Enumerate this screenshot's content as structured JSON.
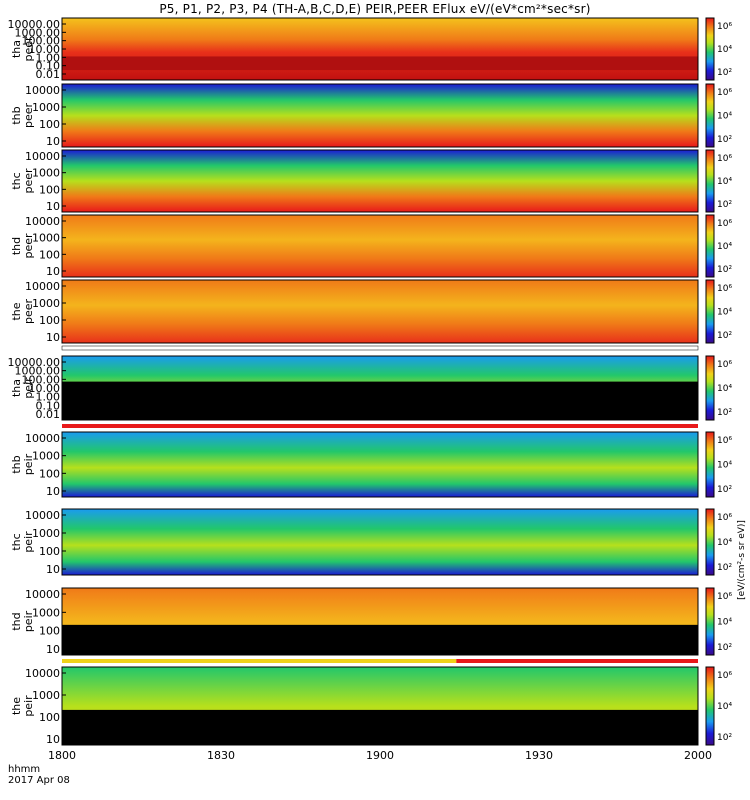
{
  "header": {
    "title": "P5, P1, P2, P3, P4 (TH-A,B,C,D,E) PEIR,PEER EFlux eV/(eV*cm²*sec*sr)"
  },
  "footer": {
    "time_format": "hhmm",
    "date": "2017 Apr 08"
  },
  "colorbar_label": "[eV/(cm²-s sr eV)]",
  "colors": {
    "low": "#1b1bd6",
    "mid": "#22c76b",
    "high": "#f0d21a",
    "peak": "#e8191a",
    "fill": "#000000",
    "frame": "#000000"
  },
  "chart_data": {
    "type": "heatmap",
    "x_ticks": [
      "1800",
      "1830",
      "1900",
      "1930",
      "2000"
    ],
    "xlim": [
      "18:00",
      "20:00"
    ],
    "colorbar_ticks": [
      "10²",
      "10⁴",
      "10⁶"
    ],
    "panels": [
      {
        "id": "tha-peer",
        "label_top": "tha",
        "label_bot": "peer",
        "y_ticks": [
          "10000.00",
          "1000.00",
          "100.00",
          "10.00",
          "1.00",
          "0.10",
          "0.01"
        ],
        "scale": "log"
      },
      {
        "id": "thb-peer",
        "label_top": "thb",
        "label_bot": "peer",
        "y_ticks": [
          "10000",
          "1000",
          "100",
          "10"
        ],
        "scale": "log"
      },
      {
        "id": "thc-peer",
        "label_top": "thc",
        "label_bot": "peer",
        "y_ticks": [
          "10000",
          "1000",
          "100",
          "10"
        ],
        "scale": "log"
      },
      {
        "id": "thd-peer",
        "label_top": "thd",
        "label_bot": "peer",
        "y_ticks": [
          "10000",
          "1000",
          "100",
          "10"
        ],
        "scale": "log"
      },
      {
        "id": "the-peer",
        "label_top": "the",
        "label_bot": "peer",
        "y_ticks": [
          "10000",
          "1000",
          "100",
          "10"
        ],
        "scale": "log"
      },
      {
        "id": "tha-peir",
        "label_top": "tha",
        "label_bot": "peir",
        "y_ticks": [
          "10000.00",
          "1000.00",
          "100.00",
          "10.00",
          "1.00",
          "0.10",
          "0.01"
        ],
        "scale": "log"
      },
      {
        "id": "thb-peir",
        "label_top": "thb",
        "label_bot": "peir",
        "y_ticks": [
          "10000",
          "1000",
          "100",
          "10"
        ],
        "scale": "log"
      },
      {
        "id": "thc-peir",
        "label_top": "thc",
        "label_bot": "peir",
        "y_ticks": [
          "10000",
          "1000",
          "100",
          "10"
        ],
        "scale": "log"
      },
      {
        "id": "thd-peir",
        "label_top": "thd",
        "label_bot": "peir",
        "y_ticks": [
          "10000",
          "1000",
          "100",
          "10"
        ],
        "scale": "log"
      },
      {
        "id": "the-peir",
        "label_top": "the",
        "label_bot": "peir",
        "y_ticks": [
          "10000",
          "1000",
          "100",
          "10"
        ],
        "scale": "log"
      }
    ]
  }
}
